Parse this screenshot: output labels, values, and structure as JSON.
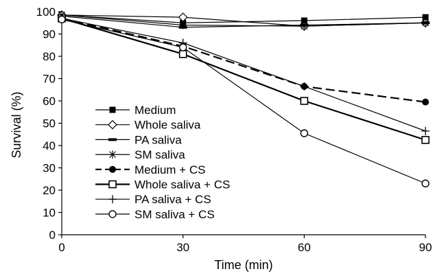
{
  "chart_data": {
    "type": "line",
    "xlabel": "Time (min)",
    "ylabel": "Survival (%)",
    "x": [
      0,
      30,
      60,
      90
    ],
    "xticks": [
      "0",
      "30",
      "60",
      "90"
    ],
    "yticks": [
      "0",
      "10",
      "20",
      "30",
      "40",
      "50",
      "60",
      "70",
      "80",
      "90",
      "100"
    ],
    "xlim": [
      0,
      90
    ],
    "ylim": [
      0,
      100
    ],
    "grid": false,
    "legend_position": "lower-left",
    "series": [
      {
        "name": "Medium",
        "values": [
          98.5,
          95,
          96,
          97.5
        ],
        "marker": "filled-square",
        "dash": "solid",
        "weight": "thin"
      },
      {
        "name": "Whole saliva",
        "values": [
          98.5,
          97.5,
          93.5,
          95
        ],
        "marker": "open-diamond",
        "dash": "solid",
        "weight": "thin"
      },
      {
        "name": "PA saliva",
        "values": [
          98,
          93,
          94,
          95
        ],
        "marker": "dash",
        "dash": "solid",
        "weight": "thin"
      },
      {
        "name": "SM saliva",
        "values": [
          98.5,
          94,
          93.5,
          95
        ],
        "marker": "asterisk",
        "dash": "solid",
        "weight": "thin"
      },
      {
        "name": "Medium + CS",
        "values": [
          97,
          84.5,
          66.5,
          59.5
        ],
        "marker": "filled-circle",
        "dash": "dashed",
        "weight": "bold"
      },
      {
        "name": "Whole saliva + CS",
        "values": [
          97,
          81,
          60,
          42.5
        ],
        "marker": "open-square",
        "dash": "solid",
        "weight": "bold"
      },
      {
        "name": "PA saliva + CS",
        "values": [
          97,
          86,
          66.5,
          46.5
        ],
        "marker": "plus",
        "dash": "solid",
        "weight": "thin"
      },
      {
        "name": "SM saliva + CS",
        "values": [
          96.5,
          84,
          45.5,
          23
        ],
        "marker": "open-circle",
        "dash": "solid",
        "weight": "thin"
      }
    ]
  }
}
